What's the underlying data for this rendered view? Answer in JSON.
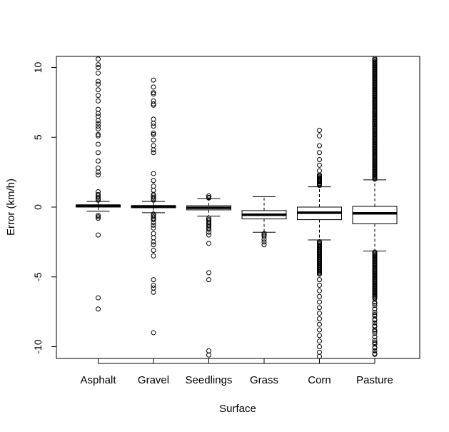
{
  "chart_data": {
    "type": "boxplot",
    "title": "",
    "xlabel": "Surface",
    "ylabel": "Error (km/h)",
    "ylim": [
      -10.8,
      10.8
    ],
    "yticks": [
      -10,
      -5,
      0,
      5,
      10
    ],
    "ytick_labels": [
      "-10",
      "-5",
      "0",
      "5",
      "10"
    ],
    "grid": false,
    "legend": "none",
    "categories": [
      "Asphalt",
      "Gravel",
      "Seedlings",
      "Grass",
      "Corn",
      "Pasture"
    ],
    "boxes": [
      {
        "name": "Asphalt",
        "whisker_low": -0.3,
        "q1": 0.0,
        "median": 0.1,
        "q3": 0.15,
        "whisker_high": 0.4,
        "outliers": [
          10.6,
          10.2,
          10.0,
          9.6,
          9.0,
          8.8,
          8.4,
          8.0,
          7.6,
          7.0,
          6.7,
          6.5,
          6.2,
          6.0,
          5.8,
          5.6,
          5.2,
          5.1,
          4.5,
          3.9,
          3.3,
          2.8,
          2.5,
          2.3,
          1.1,
          0.9,
          0.8,
          0.7,
          0.6,
          0.5,
          -0.6,
          -0.7,
          -0.8,
          -2.0,
          -6.5,
          -7.3
        ]
      },
      {
        "name": "Gravel",
        "whisker_low": -0.4,
        "q1": -0.05,
        "median": 0.05,
        "q3": 0.1,
        "whisker_high": 0.4,
        "outliers": [
          9.1,
          8.6,
          8.2,
          8.1,
          7.6,
          7.4,
          7.3,
          6.3,
          6.0,
          5.8,
          5.3,
          5.2,
          4.8,
          4.4,
          4.1,
          3.9,
          2.4,
          1.9,
          1.5,
          1.2,
          0.9,
          0.8,
          0.7,
          0.6,
          0.5,
          -0.5,
          -0.6,
          -0.7,
          -0.8,
          -0.9,
          -1.1,
          -1.3,
          -1.5,
          -1.9,
          -2.2,
          -2.5,
          -2.7,
          -3.1,
          -3.5,
          -5.2,
          -5.6,
          -5.8,
          -6.1,
          -9.0
        ]
      },
      {
        "name": "Seedlings",
        "whisker_low": -0.65,
        "q1": -0.2,
        "median": -0.05,
        "q3": 0.1,
        "whisker_high": 0.6,
        "outliers": [
          0.8,
          0.7,
          0.65,
          -0.8,
          -0.9,
          -1.0,
          -1.1,
          -1.2,
          -1.3,
          -1.4,
          -1.5,
          -1.6,
          -1.8,
          -2.0,
          -2.6,
          -4.7,
          -5.2,
          -10.3,
          -10.6
        ]
      },
      {
        "name": "Grass",
        "whisker_low": -1.8,
        "q1": -0.85,
        "median": -0.55,
        "q3": -0.25,
        "whisker_high": 0.75,
        "outliers": [
          -1.9,
          -2.0,
          -2.1,
          -2.3,
          -2.5,
          -2.7
        ]
      },
      {
        "name": "Corn",
        "whisker_low": -2.35,
        "q1": -0.9,
        "median": -0.4,
        "q3": 0.0,
        "whisker_high": 1.45,
        "outliers": [
          5.5,
          5.1,
          4.4,
          3.9,
          3.4,
          3.0,
          2.6,
          2.3,
          2.1,
          2.0,
          1.8,
          1.7,
          1.6,
          -2.5,
          -2.8,
          -3.2,
          -3.6,
          -4.0,
          -4.4,
          -4.8,
          -5.2,
          -5.6,
          -6.0,
          -6.4,
          -6.8,
          -7.2,
          -7.6,
          -8.0,
          -8.4,
          -8.8,
          -9.2,
          -9.6,
          -10.0,
          -10.4,
          -10.7
        ]
      },
      {
        "name": "Pasture",
        "whisker_low": -3.15,
        "q1": -1.2,
        "median": -0.45,
        "q3": 0.05,
        "whisker_high": 1.95,
        "outliers": [
          10.7,
          10.3,
          10.0,
          9.6,
          9.2,
          8.8,
          8.4,
          8.0,
          7.6,
          7.2,
          6.8,
          6.4,
          6.0,
          5.6,
          5.2,
          4.8,
          4.4,
          4.0,
          3.6,
          3.2,
          2.8,
          2.4,
          2.1,
          -3.3,
          -3.7,
          -4.1,
          -4.5,
          -4.9,
          -5.3,
          -5.7,
          -6.1,
          -6.5,
          -6.9,
          -7.3,
          -7.7,
          -8.1,
          -8.5,
          -8.9,
          -9.3,
          -9.7,
          -10.1,
          -10.5,
          -10.8
        ]
      }
    ]
  }
}
